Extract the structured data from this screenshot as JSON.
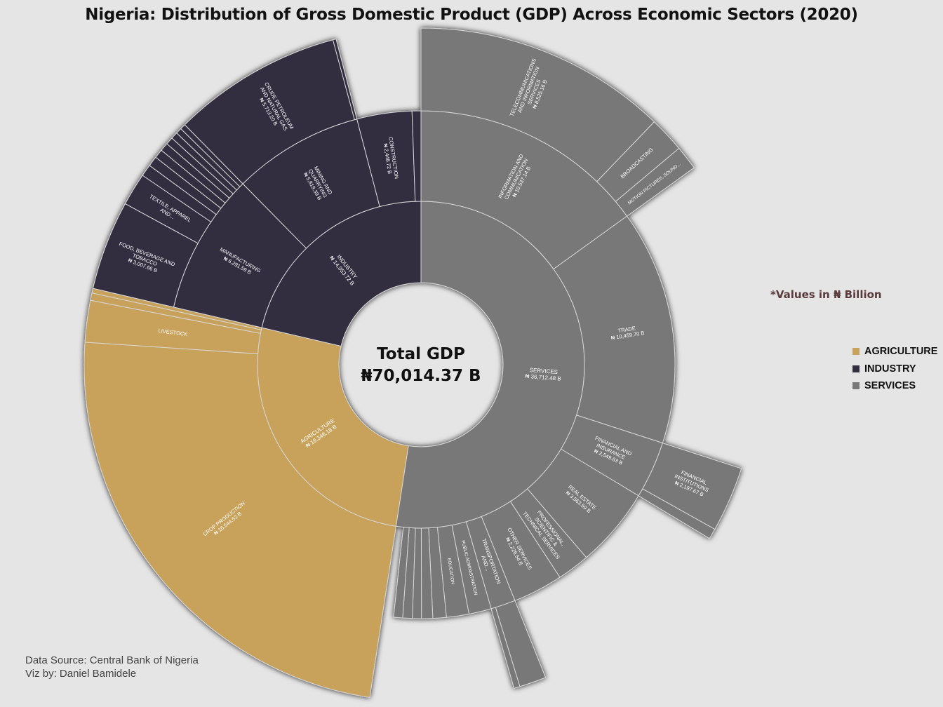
{
  "title": "Nigeria: Distribution of Gross Domestic Product (GDP) Across Economic Sectors (2020)",
  "values_note": "*Values in  ₦ Billion",
  "center": {
    "line1": "Total GDP",
    "line2": "₦70,014.37 B"
  },
  "footer": {
    "source": "Data Source: Central Bank of Nigeria",
    "credit": "Viz by: Daniel Bamidele"
  },
  "colors": {
    "agriculture": "#c8a25a",
    "industry": "#322d3f",
    "services": "#787878",
    "background": "#e5e5e5",
    "separator": "#d6d6d6"
  },
  "legend": [
    {
      "label": "AGRICULTURE",
      "color": "#c8a25a"
    },
    {
      "label": "INDUSTRY",
      "color": "#322d3f"
    },
    {
      "label": "SERVICES",
      "color": "#787878"
    }
  ],
  "chart_data": {
    "type": "sunburst",
    "title": "Nigeria: Distribution of Gross Domestic Product (GDP) Across Economic Sectors (2020)",
    "total": 70014.37,
    "unit": "₦ Billion",
    "legend_position": "right",
    "sectors": [
      {
        "name": "AGRICULTURE",
        "label": "AGRICULTURE",
        "value_label": "₦ 18,348.18 B",
        "value": 18348.18,
        "color": "#c8a25a",
        "children": [
          {
            "name": "CROP PRODUCTION",
            "value_label": "₦ 16,544.52 B",
            "value": 16544.52,
            "extends": true
          },
          {
            "name": "LIVESTOCK",
            "value_label": "",
            "value": 1400,
            "extends": true
          },
          {
            "name": "",
            "value_label": "",
            "value": 250,
            "extends": true
          },
          {
            "name": "",
            "value_label": "",
            "value": 153.66,
            "extends": true
          }
        ]
      },
      {
        "name": "INDUSTRY",
        "label": "INDUSTRY",
        "value_label": "₦ 14,953.72 B",
        "value": 14953.72,
        "color": "#322d3f",
        "children": [
          {
            "name": "MANUFACTURING",
            "value_label": "₦ 6,291.59 B",
            "value": 6291.59,
            "extends": true,
            "children": [
              {
                "name": "FOOD, BEVERAGE AND TOBACCO",
                "value_label": "₦ 3,007.66 B",
                "value": 3007.66
              },
              {
                "name": "TEXTILE, APPAREL AND...",
                "value_label": "",
                "value": 1100
              },
              {
                "name": "",
                "value": 400
              },
              {
                "name": "",
                "value": 340
              },
              {
                "name": "",
                "value": 300
              },
              {
                "name": "",
                "value": 280
              },
              {
                "name": "",
                "value": 250
              },
              {
                "name": "",
                "value": 230
              },
              {
                "name": "",
                "value": 200
              },
              {
                "name": "",
                "value": 183.93
              }
            ]
          },
          {
            "name": "MINING AND QUARRYING",
            "value_label": "₦ 5,819.39 B",
            "value": 5819.39,
            "extends": true,
            "children": [
              {
                "name": "CRUDE PETROLEUM AND NATURAL GAS",
                "value_label": "₦ 5,713.20 B",
                "value": 5713.2
              },
              {
                "name": "",
                "value": 106.19
              }
            ]
          },
          {
            "name": "CONSTRUCTION",
            "value_label": "₦ 2,448.72 B",
            "value": 2448.72
          },
          {
            "name": "",
            "value_label": "",
            "value": 394.02
          }
        ]
      },
      {
        "name": "SERVICES",
        "label": "SERVICES",
        "value_label": "₦ 36,712.48 B",
        "value": 36712.48,
        "color": "#787878",
        "children": [
          {
            "name": "INFORMATION AND COMMUNICATION",
            "value_label": "₦ 10,537.14 B",
            "value": 10537.14,
            "extends": true,
            "children": [
              {
                "name": "TELECOMMUNICATIONS AND INFORMATION SERVICES",
                "value_label": "₦ 8,525.16 B",
                "value": 8525.16
              },
              {
                "name": "BROADCASTING",
                "value_label": "",
                "value": 1200
              },
              {
                "name": "MOTION PICTURES, SOUND...",
                "value_label": "",
                "value": 811.98
              }
            ]
          },
          {
            "name": "TRADE",
            "value_label": "₦ 10,459.70 B",
            "value": 10459.7,
            "extends": false
          },
          {
            "name": "FINANCIAL AND INSURANCE",
            "value_label": "₦ 2,549.63 B",
            "value": 2549.63,
            "extends": true,
            "children": [
              {
                "name": "FINANCIAL INSTITUTIONS",
                "value_label": "₦ 2,197.67 B",
                "value": 2197.67
              },
              {
                "name": "",
                "value": 351.96
              }
            ]
          },
          {
            "name": "REAL ESTATE",
            "value_label": "₦ 3,563.59 B",
            "value": 3563.59,
            "extends": false
          },
          {
            "name": "PROFESSIONAL, SCIENTIFIC & TECHNICAL SERVICES",
            "value_label": "",
            "value": 1450,
            "extends": false
          },
          {
            "name": "OTHER SERVICES",
            "value_label": "₦ 2,226.54 B",
            "value": 2226.54,
            "extends": false
          },
          {
            "name": "TRANSPORTATION AND...",
            "value_label": "",
            "value": 1100,
            "extends": true,
            "children": [
              {
                "name": "",
                "value": 900
              },
              {
                "name": "",
                "value": 200
              }
            ]
          },
          {
            "name": "PUBLIC ADMINISTRATION",
            "value_label": "",
            "value": 1000,
            "extends": false
          },
          {
            "name": "EDUCATION",
            "value_label": "",
            "value": 1000,
            "extends": false
          },
          {
            "name": "",
            "value_label": "",
            "value": 600,
            "extends": false
          },
          {
            "name": "",
            "value_label": "",
            "value": 500,
            "extends": false
          },
          {
            "name": "",
            "value_label": "",
            "value": 400,
            "extends": false
          },
          {
            "name": "",
            "value_label": "",
            "value": 425.88,
            "extends": false
          },
          {
            "name": "",
            "value_label": "",
            "value": 400,
            "extends": false
          }
        ]
      }
    ]
  }
}
